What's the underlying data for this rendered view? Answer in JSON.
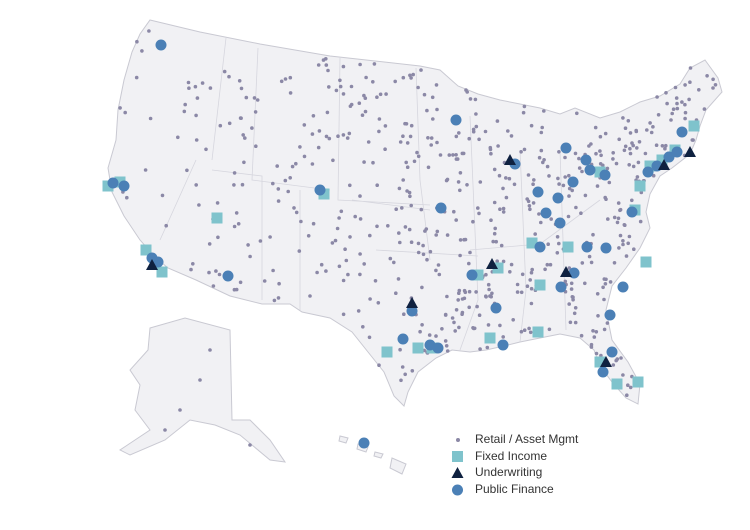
{
  "legend": [
    "Retail / Asset Mgmt",
    "Fixed Income",
    "Underwriting",
    "Public Finance"
  ]
}
